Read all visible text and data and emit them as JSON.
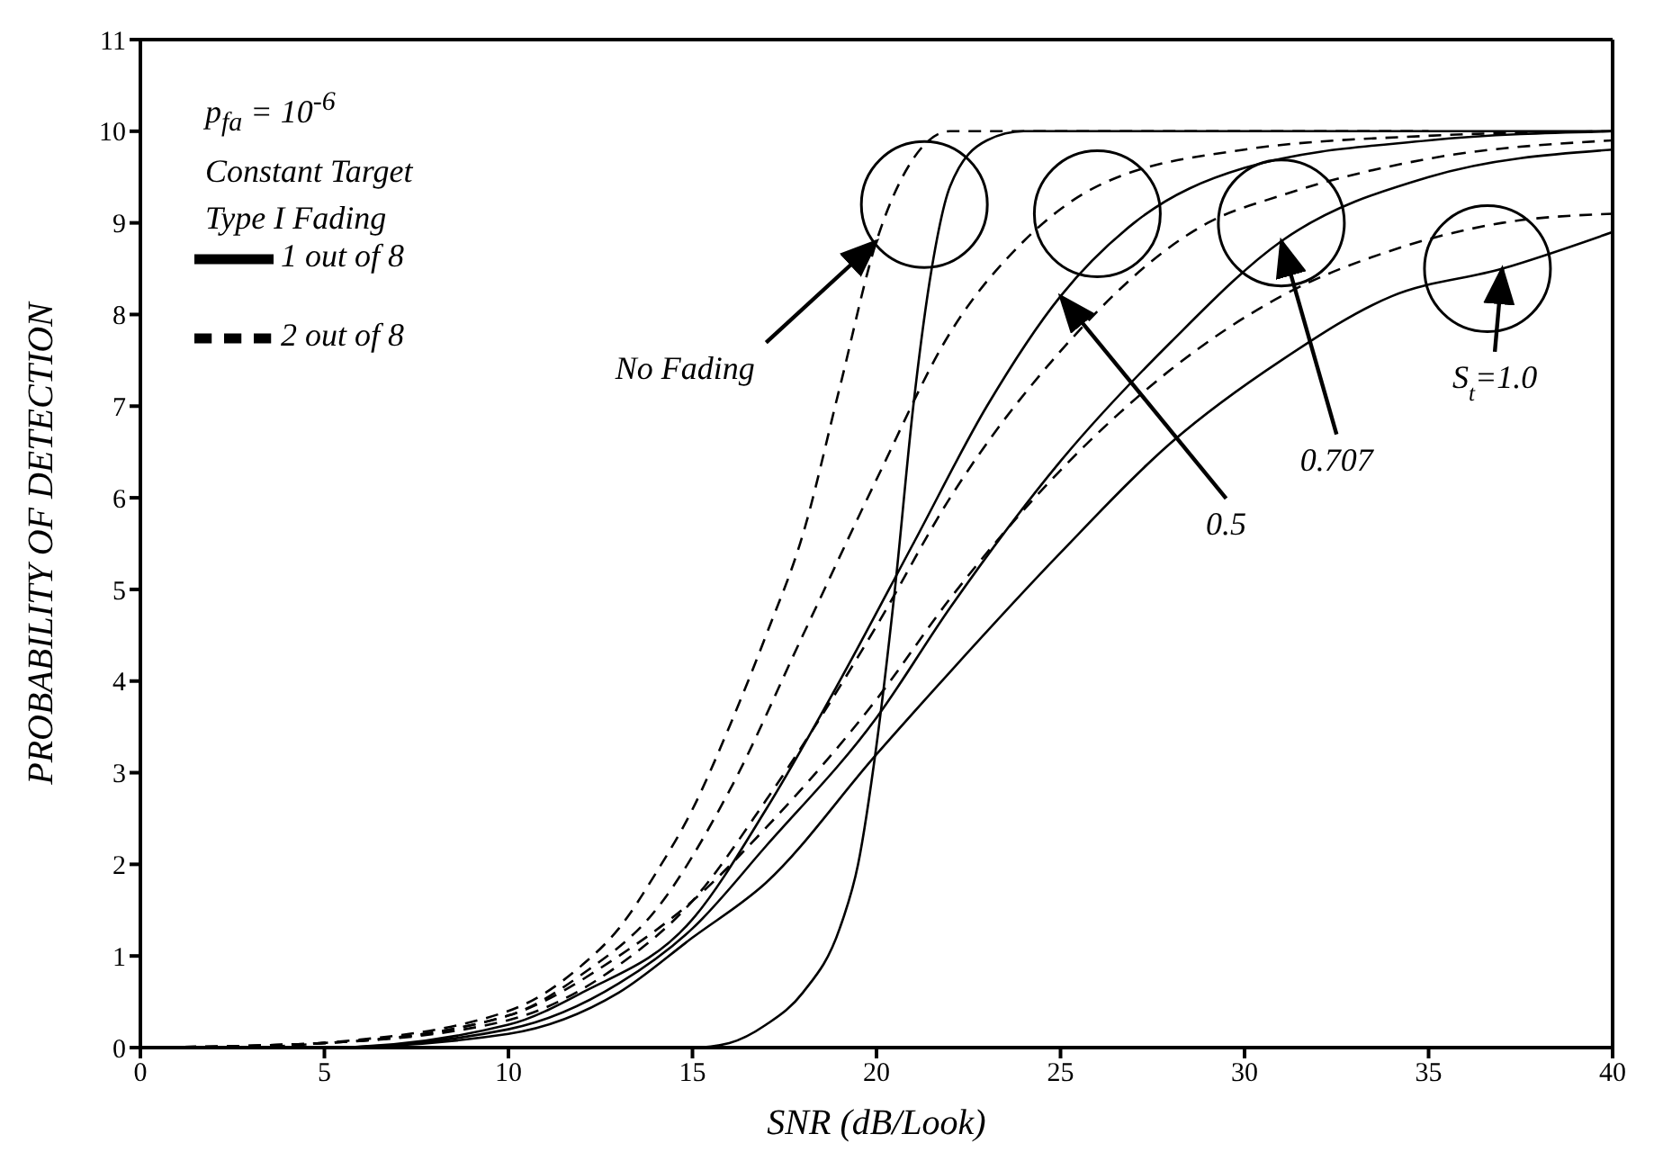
{
  "chart_data": {
    "type": "line",
    "xlabel": "SNR (dB/Look)",
    "ylabel": "PROBABILITY OF DETECTION",
    "xlim": [
      0,
      40
    ],
    "xticks": [
      0,
      5,
      10,
      15,
      20,
      25,
      30,
      35,
      40
    ],
    "ylim": [
      0,
      11
    ],
    "yticks": [
      0,
      1,
      2,
      3,
      4,
      5,
      6,
      7,
      8,
      9,
      10,
      11
    ],
    "grid": false,
    "legend": "top left",
    "marker": "none",
    "annotations": [
      "p$_{fa}$ = 10$^{-6}$",
      "Constant Target",
      "Type I Fading",
      {
        "text": "No Fading",
        "x": 20,
        "y": 8.8
      },
      {
        "text": "0.5",
        "x": 25,
        "y": 8.2
      },
      {
        "text": "0.707",
        "x": 31,
        "y": 8.8
      },
      {
        "text": "S$_{t}$=1.0",
        "x": 37,
        "y": 8.5
      }
    ],
    "series": [
      {
        "name": "1 out of 8",
        "color": "#000000",
        "line_style": "solid",
        "x": [
          14,
          15,
          16,
          17,
          18,
          19,
          19.5,
          20,
          20.5,
          21,
          21.5,
          22,
          23,
          24,
          40
        ],
        "values": [
          0,
          0,
          0.05,
          0.25,
          0.6,
          1.3,
          2,
          3.3,
          5,
          7,
          8.5,
          9.4,
          9.9,
          10,
          10
        ]
      },
      {
        "name": "2 out of 8",
        "color": "#000000",
        "line_style": "dashed",
        "x": [
          3,
          5,
          10,
          12,
          13,
          14,
          15,
          16,
          17,
          18,
          19,
          20,
          21,
          22,
          23,
          35
        ],
        "values": [
          0,
          0.05,
          0.4,
          0.9,
          1.3,
          1.9,
          2.6,
          3.5,
          4.5,
          5.6,
          7.2,
          8.8,
          9.7,
          10,
          10,
          10
        ]
      },
      {
        "color": "#000000",
        "line_style": "solid",
        "x": [
          0,
          5,
          10,
          12,
          15,
          17,
          19,
          21,
          23,
          25,
          27,
          30,
          35,
          40
        ],
        "values": [
          0,
          0,
          0.25,
          0.6,
          1.4,
          2.6,
          4,
          5.5,
          7,
          8.2,
          9,
          9.6,
          9.9,
          10
        ]
      },
      {
        "color": "#000000",
        "line_style": "dashed",
        "x": [
          0,
          5,
          10,
          12,
          14,
          16,
          18,
          20,
          22,
          24,
          26,
          30,
          35,
          40
        ],
        "values": [
          0,
          0.05,
          0.35,
          0.8,
          1.5,
          2.8,
          4.5,
          6.2,
          7.8,
          8.8,
          9.4,
          9.8,
          9.95,
          10
        ]
      },
      {
        "color": "#000000",
        "line_style": "solid",
        "x": [
          0,
          5,
          10,
          13,
          15,
          17,
          20,
          22,
          25,
          28,
          31,
          35,
          40
        ],
        "values": [
          0,
          0,
          0.2,
          0.7,
          1.3,
          2.2,
          3.6,
          4.8,
          6.4,
          7.7,
          8.8,
          9.5,
          9.8
        ]
      },
      {
        "color": "#000000",
        "line_style": "dashed",
        "x": [
          0,
          5,
          10,
          13,
          15,
          17,
          20,
          22,
          25,
          29,
          31,
          35,
          40
        ],
        "values": [
          0,
          0.05,
          0.3,
          0.9,
          1.6,
          2.7,
          4.6,
          6,
          7.6,
          9,
          9.3,
          9.7,
          9.9
        ]
      },
      {
        "color": "#000000",
        "line_style": "solid",
        "x": [
          0,
          5,
          10,
          13,
          15,
          17,
          20,
          22,
          25,
          28,
          31,
          34,
          37,
          40
        ],
        "values": [
          0,
          0,
          0.15,
          0.6,
          1.2,
          1.8,
          3.2,
          4.1,
          5.4,
          6.6,
          7.5,
          8.2,
          8.5,
          8.9
        ]
      },
      {
        "color": "#000000",
        "line_style": "dashed",
        "x": [
          0,
          5,
          10,
          13,
          15,
          17,
          20,
          22,
          25,
          28,
          31,
          34,
          37,
          40
        ],
        "values": [
          0,
          0.05,
          0.35,
          1,
          1.6,
          2.4,
          3.8,
          4.9,
          6.3,
          7.4,
          8.2,
          8.7,
          9,
          9.1
        ]
      }
    ]
  }
}
